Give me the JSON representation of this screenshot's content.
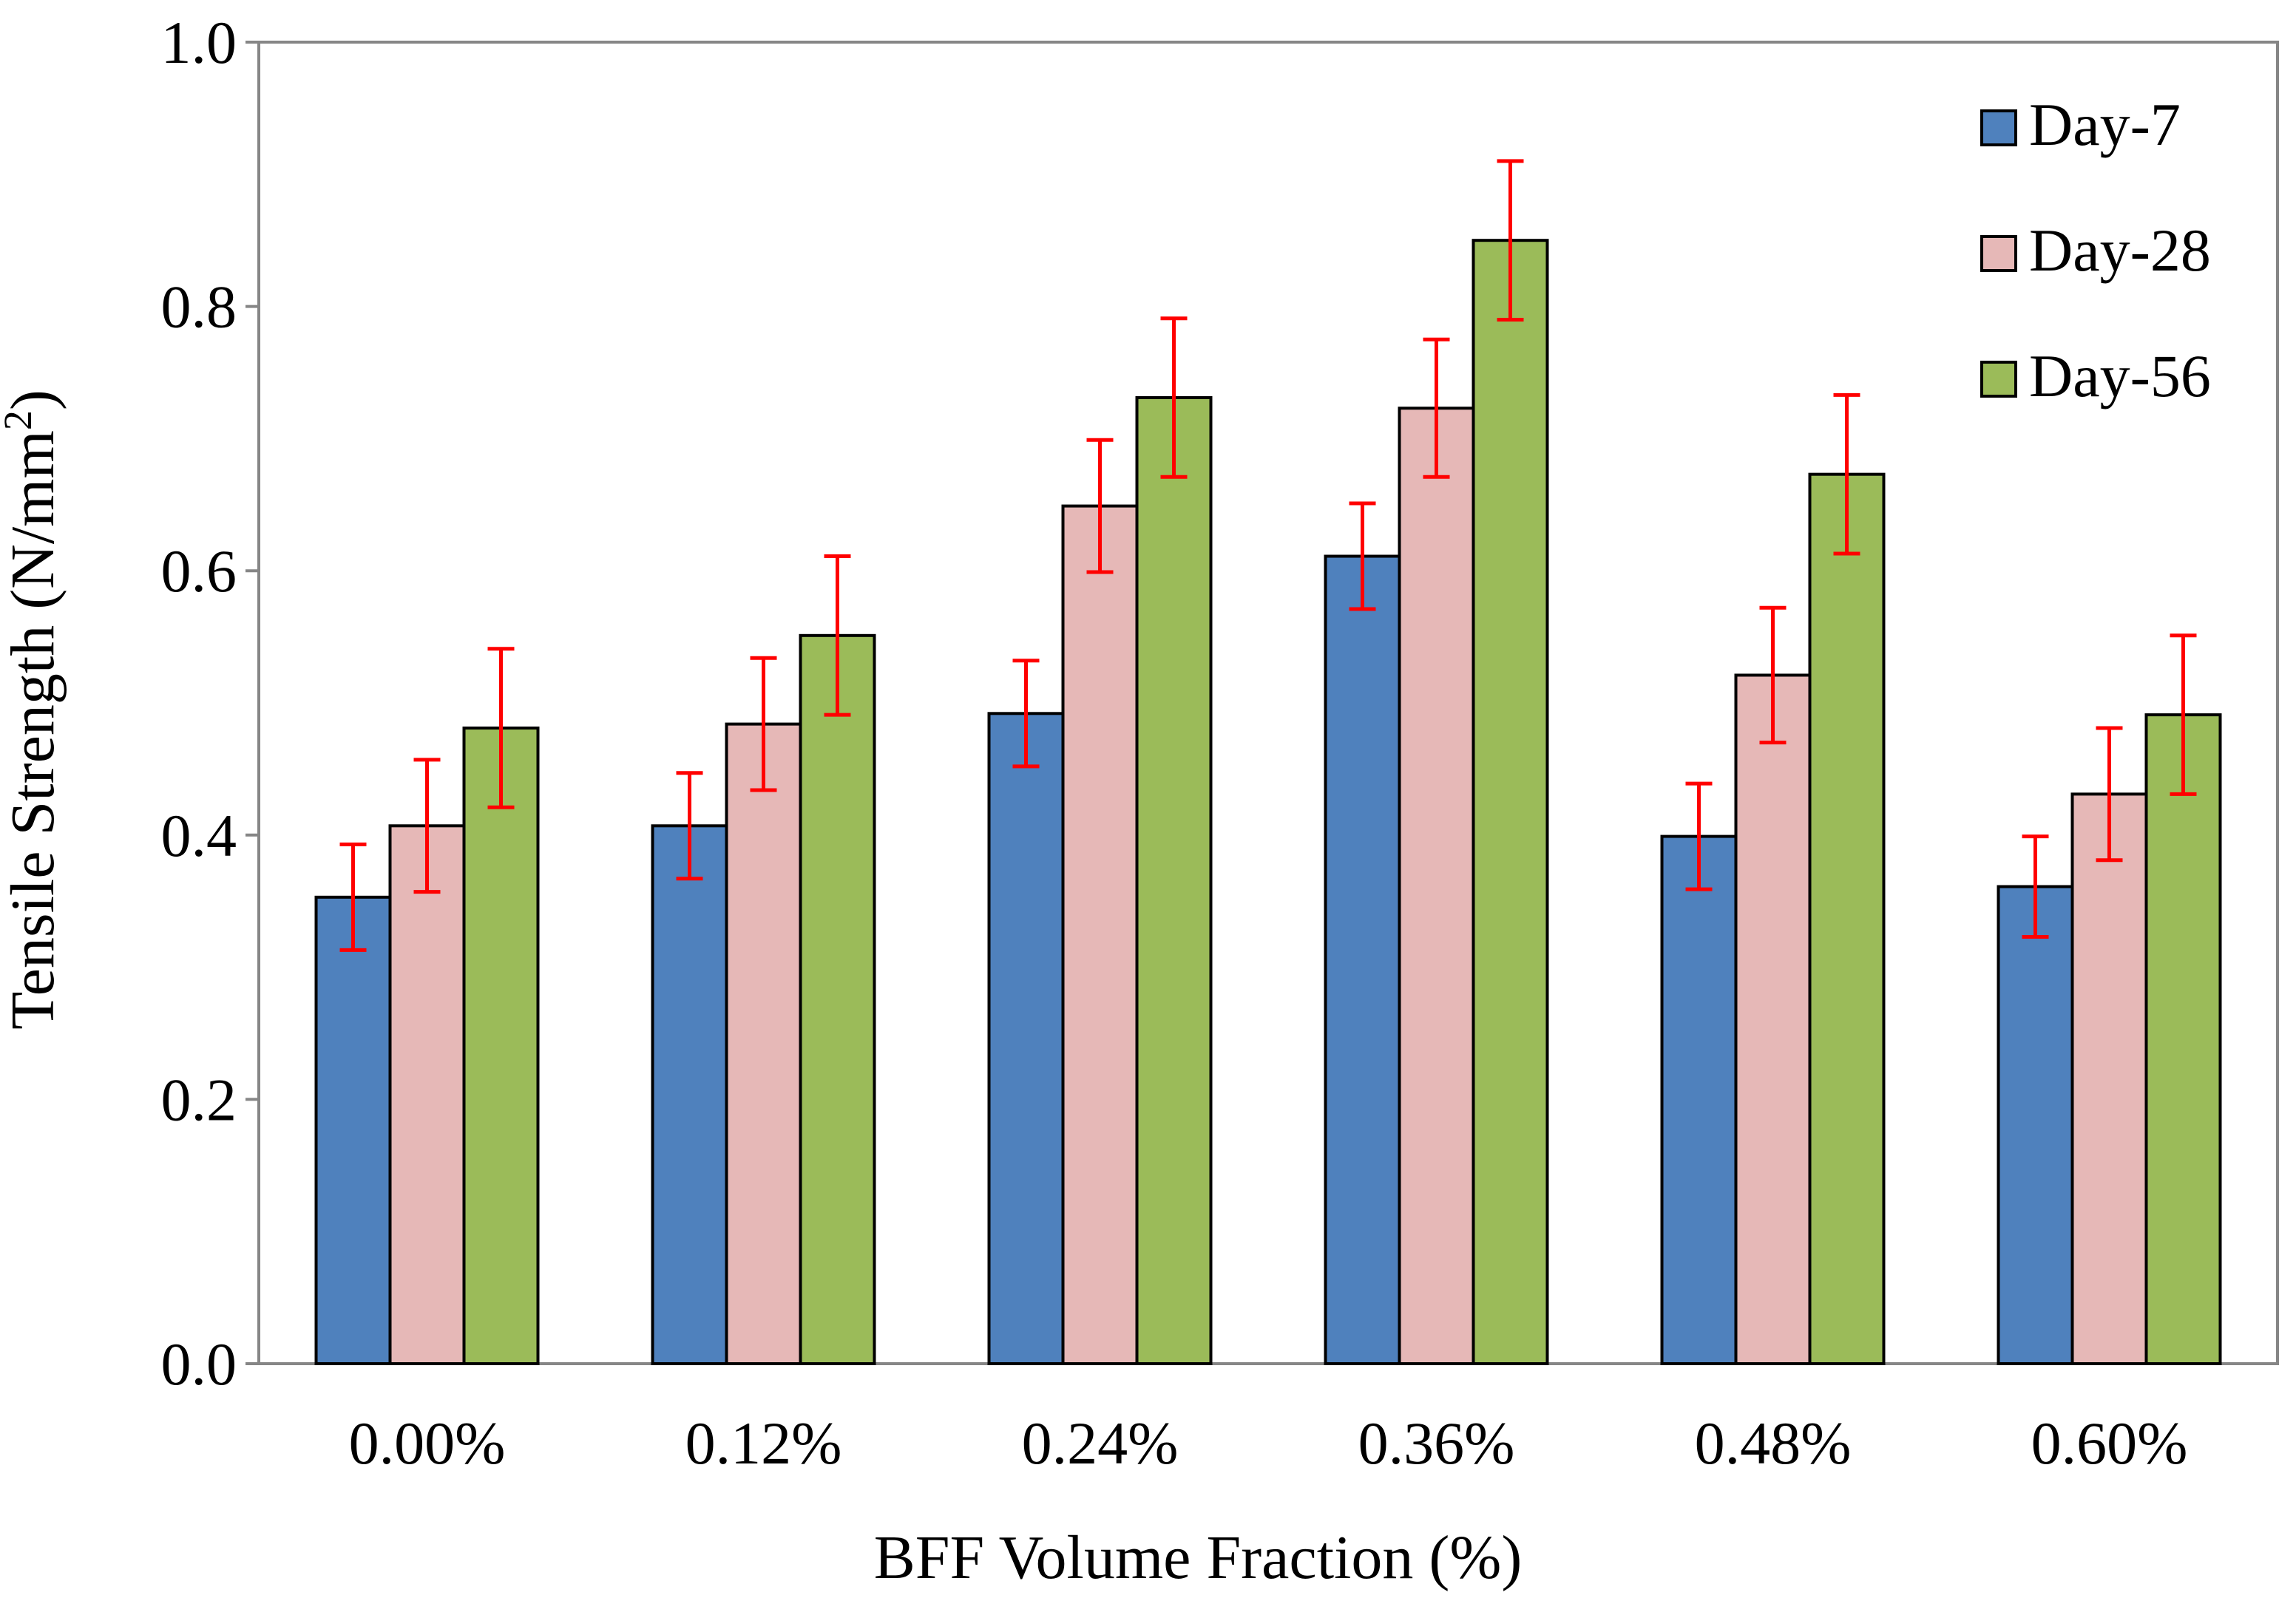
{
  "chart_data": {
    "type": "bar",
    "xlabel": "BFF Volume Fraction (%)",
    "ylabel": "Tensile Strength (N/mm",
    "ylabel_sup": "2",
    "ylabel_close": ")",
    "ylim": [
      0,
      1.0
    ],
    "yticks": [
      0.0,
      0.2,
      0.4,
      0.6,
      0.8,
      1.0
    ],
    "ytick_labels": [
      "0.0",
      "0.2",
      "0.4",
      "0.6",
      "0.8",
      "1.0"
    ],
    "categories": [
      "0.00%",
      "0.12%",
      "0.24%",
      "0.36%",
      "0.48%",
      "0.60%"
    ],
    "grid": false,
    "legend_position": "top-right",
    "error_bar_color": "#ff0000",
    "series": [
      {
        "name": "Day-7",
        "color": "#4f81bd",
        "values": [
          0.353,
          0.407,
          0.492,
          0.611,
          0.399,
          0.361
        ],
        "errors": [
          0.04,
          0.04,
          0.04,
          0.04,
          0.04,
          0.038
        ]
      },
      {
        "name": "Day-28",
        "color": "#e6b8b7",
        "values": [
          0.407,
          0.484,
          0.649,
          0.723,
          0.521,
          0.431
        ],
        "errors": [
          0.05,
          0.05,
          0.05,
          0.052,
          0.051,
          0.05
        ]
      },
      {
        "name": "Day-56",
        "color": "#9bbb59",
        "values": [
          0.481,
          0.551,
          0.731,
          0.85,
          0.673,
          0.491
        ],
        "errors": [
          0.06,
          0.06,
          0.06,
          0.06,
          0.06,
          0.06
        ]
      }
    ]
  }
}
